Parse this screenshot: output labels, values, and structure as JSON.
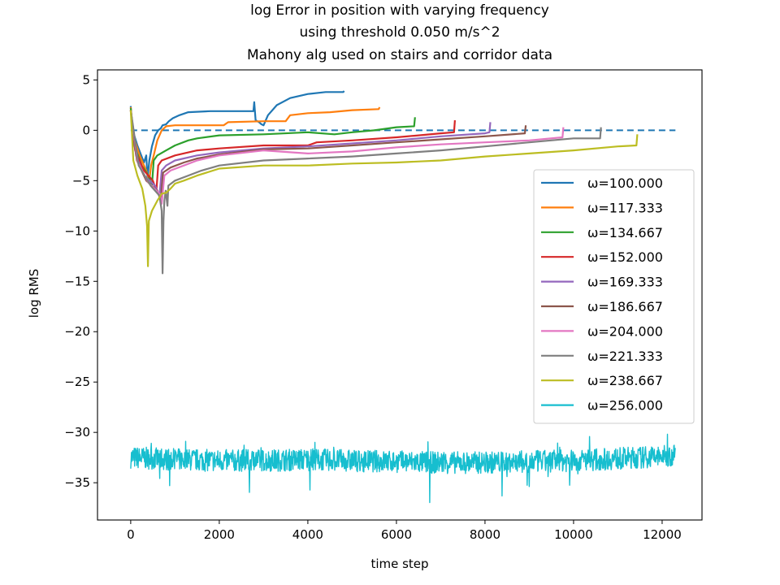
{
  "chart_data": {
    "type": "line",
    "title": [
      "log Error in position with varying frequency",
      "using threshold 0.050 m/s^2",
      "Mahony alg used on stairs and corridor data"
    ],
    "xlabel": "time step",
    "ylabel": "log RMS",
    "xlim": [
      -750,
      12900
    ],
    "ylim": [
      -38.7,
      6.0
    ],
    "x_ticks": [
      0,
      2000,
      4000,
      6000,
      8000,
      10000,
      12000
    ],
    "x_tick_labels": [
      "0",
      "2000",
      "4000",
      "6000",
      "8000",
      "10000",
      "12000"
    ],
    "y_ticks": [
      5,
      0,
      -5,
      -10,
      -15,
      -20,
      -25,
      -30,
      -35
    ],
    "y_tick_labels": [
      "5",
      "0",
      "−5",
      "−10",
      "−15",
      "−20",
      "−25",
      "−30",
      "−35"
    ],
    "grid": false,
    "legend_position": "center-right",
    "reference_line": {
      "y": 0,
      "x_range": [
        0,
        12300
      ],
      "style": "dashed",
      "color": "#1f77b4"
    },
    "series": [
      {
        "name": "ω=100.000",
        "color": "#1f77b4",
        "points": [
          [
            0,
            2.4
          ],
          [
            30,
            0.2
          ],
          [
            150,
            -1.5
          ],
          [
            300,
            -3.2
          ],
          [
            350,
            -2.5
          ],
          [
            380,
            -4.8
          ],
          [
            420,
            -3.0
          ],
          [
            480,
            -1.6
          ],
          [
            550,
            -0.5
          ],
          [
            620,
            0
          ],
          [
            680,
            0.2
          ],
          [
            720,
            0.5
          ],
          [
            800,
            0.6
          ],
          [
            860,
            0.9
          ],
          [
            950,
            1.2
          ],
          [
            1100,
            1.5
          ],
          [
            1300,
            1.8
          ],
          [
            1800,
            1.9
          ],
          [
            2500,
            1.9
          ],
          [
            2770,
            1.9
          ],
          [
            2790,
            2.8
          ],
          [
            2820,
            1.0
          ],
          [
            2900,
            0.8
          ],
          [
            2950,
            0.6
          ],
          [
            3000,
            0.5
          ],
          [
            3100,
            1.5
          ],
          [
            3300,
            2.5
          ],
          [
            3600,
            3.2
          ],
          [
            4000,
            3.6
          ],
          [
            4400,
            3.8
          ],
          [
            4800,
            3.8
          ],
          [
            4820,
            3.9
          ]
        ]
      },
      {
        "name": "ω=117.333",
        "color": "#ff7f0e",
        "points": [
          [
            0,
            2.3
          ],
          [
            60,
            -0.5
          ],
          [
            200,
            -2.5
          ],
          [
            350,
            -4.0
          ],
          [
            420,
            -5.0
          ],
          [
            460,
            -3.5
          ],
          [
            520,
            -2.5
          ],
          [
            600,
            -1.0
          ],
          [
            700,
            0
          ],
          [
            800,
            0.4
          ],
          [
            1000,
            0.5
          ],
          [
            1500,
            0.5
          ],
          [
            2000,
            0.5
          ],
          [
            2100,
            0.5
          ],
          [
            2200,
            0.8
          ],
          [
            3000,
            0.9
          ],
          [
            3500,
            0.9
          ],
          [
            3600,
            1.5
          ],
          [
            4000,
            1.7
          ],
          [
            4500,
            1.8
          ],
          [
            5000,
            2.0
          ],
          [
            5600,
            2.1
          ],
          [
            5620,
            2.3
          ]
        ]
      },
      {
        "name": "ω=134.667",
        "color": "#2ca02c",
        "points": [
          [
            0,
            2.2
          ],
          [
            80,
            -1.5
          ],
          [
            250,
            -3.5
          ],
          [
            400,
            -4.5
          ],
          [
            480,
            -5.5
          ],
          [
            520,
            -3.0
          ],
          [
            600,
            -2.5
          ],
          [
            800,
            -2.0
          ],
          [
            1000,
            -1.5
          ],
          [
            1300,
            -1.0
          ],
          [
            1500,
            -0.8
          ],
          [
            2000,
            -0.5
          ],
          [
            3000,
            -0.4
          ],
          [
            4000,
            -0.2
          ],
          [
            4600,
            -0.4
          ],
          [
            5000,
            -0.2
          ],
          [
            5500,
            0
          ],
          [
            6000,
            0.3
          ],
          [
            6400,
            0.4
          ],
          [
            6420,
            1.3
          ]
        ]
      },
      {
        "name": "ω=152.000",
        "color": "#d62728",
        "points": [
          [
            0,
            2.0
          ],
          [
            100,
            -2.0
          ],
          [
            300,
            -4.0
          ],
          [
            500,
            -5.0
          ],
          [
            580,
            -6.0
          ],
          [
            620,
            -3.5
          ],
          [
            700,
            -3.0
          ],
          [
            1000,
            -2.5
          ],
          [
            1500,
            -2.0
          ],
          [
            2000,
            -1.8
          ],
          [
            3000,
            -1.5
          ],
          [
            4000,
            -1.5
          ],
          [
            4200,
            -1.2
          ],
          [
            5000,
            -1.0
          ],
          [
            6000,
            -0.7
          ],
          [
            6500,
            -0.5
          ],
          [
            7000,
            -0.3
          ],
          [
            7300,
            -0.2
          ],
          [
            7320,
            1.0
          ]
        ]
      },
      {
        "name": "ω=169.333",
        "color": "#9467bd",
        "points": [
          [
            0,
            2.0
          ],
          [
            120,
            -2.5
          ],
          [
            300,
            -4.5
          ],
          [
            550,
            -5.5
          ],
          [
            650,
            -6.5
          ],
          [
            700,
            -4.0
          ],
          [
            800,
            -3.5
          ],
          [
            1000,
            -3.0
          ],
          [
            1500,
            -2.5
          ],
          [
            2000,
            -2.2
          ],
          [
            3000,
            -1.8
          ],
          [
            4000,
            -1.6
          ],
          [
            5000,
            -1.3
          ],
          [
            6000,
            -1.0
          ],
          [
            7000,
            -0.6
          ],
          [
            8000,
            -0.3
          ],
          [
            8100,
            -0.2
          ],
          [
            8120,
            0.8
          ]
        ]
      },
      {
        "name": "ω=186.667",
        "color": "#8c564b",
        "points": [
          [
            0,
            2.0
          ],
          [
            140,
            -3.0
          ],
          [
            350,
            -5.0
          ],
          [
            600,
            -6.0
          ],
          [
            680,
            -7.0
          ],
          [
            730,
            -4.2
          ],
          [
            900,
            -3.7
          ],
          [
            1200,
            -3.2
          ],
          [
            1500,
            -2.8
          ],
          [
            2000,
            -2.4
          ],
          [
            3000,
            -1.9
          ],
          [
            4000,
            -1.8
          ],
          [
            5000,
            -1.5
          ],
          [
            6000,
            -1.2
          ],
          [
            7000,
            -0.9
          ],
          [
            8000,
            -0.6
          ],
          [
            8900,
            -0.3
          ],
          [
            8920,
            0.5
          ]
        ]
      },
      {
        "name": "ω=204.000",
        "color": "#e377c2",
        "points": [
          [
            0,
            2.0
          ],
          [
            160,
            -3.2
          ],
          [
            400,
            -5.2
          ],
          [
            650,
            -6.3
          ],
          [
            700,
            -7.3
          ],
          [
            760,
            -4.5
          ],
          [
            900,
            -4.0
          ],
          [
            1200,
            -3.5
          ],
          [
            1500,
            -3.0
          ],
          [
            2000,
            -2.5
          ],
          [
            3000,
            -2.0
          ],
          [
            4000,
            -2.3
          ],
          [
            5000,
            -2.1
          ],
          [
            6000,
            -1.7
          ],
          [
            7000,
            -1.4
          ],
          [
            8000,
            -1.2
          ],
          [
            9000,
            -1.0
          ],
          [
            9750,
            -0.7
          ],
          [
            9770,
            0.3
          ]
        ]
      },
      {
        "name": "ω=221.333",
        "color": "#7f7f7f",
        "points": [
          [
            0,
            2.0
          ],
          [
            180,
            -3.5
          ],
          [
            450,
            -5.5
          ],
          [
            650,
            -6.5
          ],
          [
            700,
            -8.0
          ],
          [
            720,
            -14.2
          ],
          [
            740,
            -9.0
          ],
          [
            760,
            -7.0
          ],
          [
            790,
            -6.0
          ],
          [
            830,
            -7.5
          ],
          [
            850,
            -5.5
          ],
          [
            1000,
            -5.0
          ],
          [
            1300,
            -4.5
          ],
          [
            1600,
            -4.0
          ],
          [
            2000,
            -3.5
          ],
          [
            3000,
            -3.0
          ],
          [
            4000,
            -2.8
          ],
          [
            5000,
            -2.6
          ],
          [
            6000,
            -2.3
          ],
          [
            7000,
            -2.0
          ],
          [
            8000,
            -1.6
          ],
          [
            9000,
            -1.2
          ],
          [
            10000,
            -0.8
          ],
          [
            10600,
            -0.8
          ],
          [
            10620,
            0.3
          ]
        ]
      },
      {
        "name": "ω=238.667",
        "color": "#bcbd22",
        "points": [
          [
            0,
            2.0
          ],
          [
            60,
            -3.0
          ],
          [
            150,
            -4.5
          ],
          [
            260,
            -5.8
          ],
          [
            330,
            -7.5
          ],
          [
            370,
            -9.5
          ],
          [
            390,
            -13.5
          ],
          [
            410,
            -9.0
          ],
          [
            480,
            -8.0
          ],
          [
            600,
            -7.0
          ],
          [
            700,
            -6.3
          ],
          [
            800,
            -6.2
          ],
          [
            900,
            -5.8
          ],
          [
            1000,
            -5.3
          ],
          [
            1200,
            -5.0
          ],
          [
            1500,
            -4.5
          ],
          [
            2000,
            -3.8
          ],
          [
            3000,
            -3.5
          ],
          [
            4000,
            -3.5
          ],
          [
            5000,
            -3.3
          ],
          [
            6000,
            -3.2
          ],
          [
            7000,
            -3.0
          ],
          [
            8000,
            -2.6
          ],
          [
            9000,
            -2.3
          ],
          [
            10000,
            -2.0
          ],
          [
            11000,
            -1.6
          ],
          [
            11420,
            -1.5
          ],
          [
            11440,
            -0.4
          ]
        ]
      },
      {
        "name": "ω=256.000",
        "color": "#17becf",
        "noise": true,
        "points": [
          [
            0,
            -32.5
          ],
          [
            1000,
            -32.7
          ],
          [
            2000,
            -32.8
          ],
          [
            3000,
            -32.8
          ],
          [
            4000,
            -32.7
          ],
          [
            5000,
            -32.8
          ],
          [
            6000,
            -32.9
          ],
          [
            7000,
            -33.0
          ],
          [
            8000,
            -33.0
          ],
          [
            9000,
            -32.9
          ],
          [
            10000,
            -32.8
          ],
          [
            11000,
            -32.6
          ],
          [
            12000,
            -32.4
          ],
          [
            12300,
            -32.3
          ]
        ]
      }
    ]
  }
}
